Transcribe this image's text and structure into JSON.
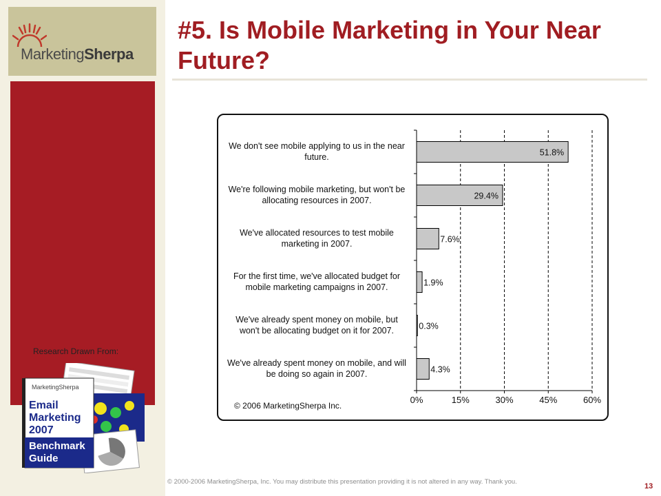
{
  "logo": {
    "text_a": "Marketing",
    "text_b": "Sherpa"
  },
  "sidebar": {
    "research_label": "Research Drawn From:",
    "book": {
      "brand": "MarketingSherpa",
      "line1": "Email",
      "line2": "Marketing",
      "line3": "2007",
      "line4": "Benchmark",
      "line5": "Guide"
    }
  },
  "title": "#5. Is Mobile Marketing in Your Near Future?",
  "chart_copyright": "© 2006 MarketingSherpa Inc.",
  "footer": "© 2000-2006 MarketingSherpa, Inc. You may distribute this presentation providing it is not altered in any way. Thank you.",
  "page_number": "13",
  "colors": {
    "accent": "#a01d22",
    "panel": "#a61c24",
    "bar_fill": "#c8c8c8"
  },
  "chart_data": {
    "type": "bar",
    "orientation": "horizontal",
    "categories": [
      "We don't see mobile applying to us in the near future.",
      "We're following mobile marketing, but won't be allocating resources in 2007.",
      "We've allocated resources to test mobile marketing in 2007.",
      "For the first time, we've allocated budget for mobile marketing campaigns in 2007.",
      "We've already spent money on mobile, but won't be allocating budget on it for 2007.",
      "We've already spent money on mobile, and will be doing so again in 2007."
    ],
    "category_lines": [
      [
        "We don't see mobile applying to us in the near",
        "future."
      ],
      [
        "We're following mobile marketing, but won't be",
        "allocating resources in 2007."
      ],
      [
        "We've allocated resources to test mobile",
        "marketing in 2007."
      ],
      [
        "For the first time, we've allocated budget for",
        "mobile marketing campaigns in 2007."
      ],
      [
        "We've already spent money on mobile, but",
        "won't be allocating budget on it for 2007."
      ],
      [
        "We've already spent money on mobile, and will",
        "be doing so again in 2007."
      ]
    ],
    "values": [
      51.8,
      29.4,
      7.6,
      1.9,
      0.3,
      4.3
    ],
    "value_labels": [
      "51.8%",
      "29.4%",
      "7.6%",
      "1.9%",
      "0.3%",
      "4.3%"
    ],
    "xlim": [
      0,
      60
    ],
    "xticks": [
      0,
      15,
      30,
      45,
      60
    ],
    "xtick_labels": [
      "0%",
      "15%",
      "30%",
      "45%",
      "60%"
    ],
    "grid": "vertical-dashed"
  }
}
